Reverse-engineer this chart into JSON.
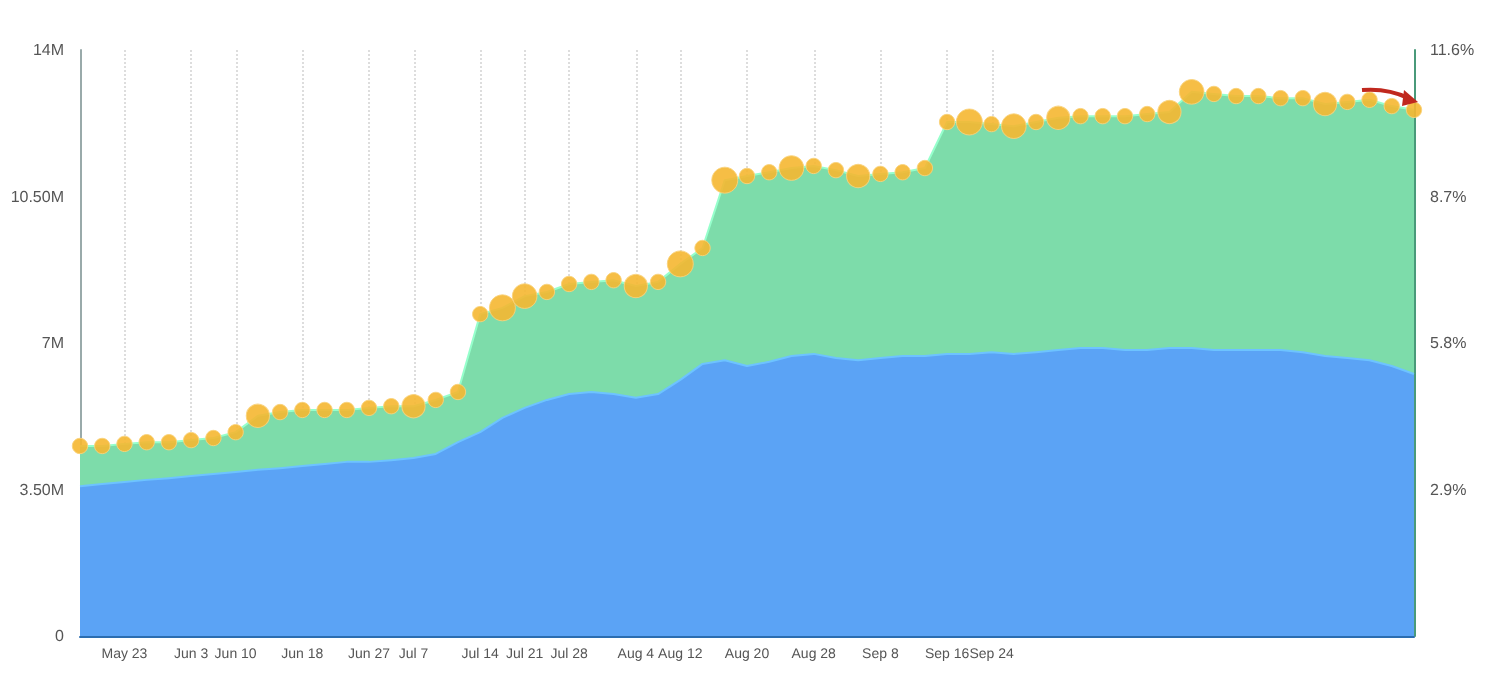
{
  "chart_data": {
    "type": "area",
    "stacked": true,
    "grid": "x",
    "categories": [
      null,
      null,
      "May 23",
      null,
      null,
      "Jun 3",
      null,
      "Jun 10",
      null,
      null,
      "Jun 18",
      null,
      null,
      "Jun 27",
      null,
      "Jul 7",
      null,
      null,
      "Jul 14",
      null,
      "Jul 21",
      null,
      "Jul 28",
      null,
      null,
      "Aug 4",
      null,
      "Aug 12",
      null,
      null,
      "Aug 20",
      null,
      null,
      "Aug 28",
      null,
      null,
      "Sep 8",
      null,
      null,
      "Sep 16",
      null,
      "Sep 24",
      null,
      null,
      null,
      null,
      null,
      null,
      null,
      null,
      null,
      null,
      null,
      null,
      null,
      null,
      null,
      null,
      null,
      null,
      null
    ],
    "ylim": [
      0,
      14
    ],
    "yticks": [
      {
        "value": 0,
        "label": "0"
      },
      {
        "value": 3.5,
        "label": "3.50M"
      },
      {
        "value": 7,
        "label": "7M"
      },
      {
        "value": 10.5,
        "label": "10.50M"
      },
      {
        "value": 14,
        "label": "14M"
      }
    ],
    "y2lim": [
      0,
      11.6
    ],
    "y2ticks": [
      {
        "value": 2.9,
        "label": "2.9%"
      },
      {
        "value": 5.8,
        "label": "5.8%"
      },
      {
        "value": 8.7,
        "label": "8.7%"
      },
      {
        "value": 11.6,
        "label": "11.6%"
      }
    ],
    "series": [
      {
        "color": "#5ba3f5",
        "values": [
          3.58,
          3.63,
          3.68,
          3.73,
          3.77,
          3.82,
          3.87,
          3.92,
          3.97,
          4.01,
          4.06,
          4.11,
          4.16,
          4.16,
          4.2,
          4.25,
          4.35,
          4.63,
          4.87,
          5.21,
          5.45,
          5.64,
          5.78,
          5.83,
          5.78,
          5.69,
          5.78,
          6.12,
          6.5,
          6.59,
          6.45,
          6.55,
          6.69,
          6.74,
          6.64,
          6.59,
          6.64,
          6.69,
          6.69,
          6.74,
          6.74,
          6.78,
          6.74,
          6.78,
          6.83,
          6.88,
          6.88,
          6.83,
          6.83,
          6.88,
          6.88,
          6.83,
          6.83,
          6.83,
          6.83,
          6.78,
          6.69,
          6.64,
          6.59,
          6.45,
          6.26
        ]
      },
      {
        "color": "#7ddcaa",
        "values": [
          0.96,
          0.91,
          0.91,
          0.9,
          0.86,
          0.86,
          0.86,
          0.95,
          1.29,
          1.34,
          1.34,
          1.29,
          1.24,
          1.29,
          1.29,
          1.24,
          1.29,
          1.2,
          2.82,
          2.63,
          2.67,
          2.58,
          2.63,
          2.63,
          2.72,
          2.67,
          2.68,
          2.77,
          2.77,
          4.3,
          4.54,
          4.53,
          4.49,
          4.49,
          4.49,
          4.4,
          4.4,
          4.39,
          4.49,
          5.54,
          5.54,
          5.45,
          5.44,
          5.5,
          5.55,
          5.54,
          5.54,
          5.59,
          5.64,
          5.64,
          6.12,
          6.12,
          6.07,
          6.07,
          6.02,
          6.07,
          6.02,
          6.12,
          6.22,
          6.21,
          6.31
        ]
      },
      {
        "type": "bubble",
        "color": "#f5b731",
        "values": [
          4.54,
          4.54,
          4.59,
          4.63,
          4.63,
          4.68,
          4.73,
          4.87,
          5.26,
          5.35,
          5.4,
          5.4,
          5.4,
          5.45,
          5.49,
          5.49,
          5.64,
          5.83,
          7.69,
          7.84,
          8.12,
          8.22,
          8.41,
          8.46,
          8.5,
          8.36,
          8.46,
          8.89,
          9.27,
          10.89,
          10.99,
          11.08,
          11.18,
          11.23,
          11.13,
          10.99,
          11.04,
          11.08,
          11.18,
          12.28,
          12.28,
          12.23,
          12.18,
          12.28,
          12.38,
          12.42,
          12.42,
          12.42,
          12.47,
          12.52,
          13.0,
          12.95,
          12.9,
          12.9,
          12.85,
          12.85,
          12.71,
          12.76,
          12.81,
          12.66,
          12.57
        ],
        "sizes": [
          0.35,
          0.35,
          0.35,
          0.35,
          0.35,
          0.35,
          0.35,
          0.35,
          0.8,
          0.35,
          0.35,
          0.35,
          0.35,
          0.35,
          0.35,
          0.8,
          0.35,
          0.35,
          0.35,
          1,
          0.9,
          0.35,
          0.35,
          0.35,
          0.35,
          0.8,
          0.35,
          1,
          0.35,
          1,
          0.35,
          0.35,
          0.9,
          0.35,
          0.35,
          0.8,
          0.35,
          0.35,
          0.35,
          0.35,
          1,
          0.35,
          0.9,
          0.35,
          0.8,
          0.35,
          0.35,
          0.35,
          0.35,
          0.8,
          0.9,
          0.35,
          0.35,
          0.35,
          0.35,
          0.35,
          0.8,
          0.35,
          0.35,
          0.35,
          0.35
        ]
      }
    ]
  }
}
